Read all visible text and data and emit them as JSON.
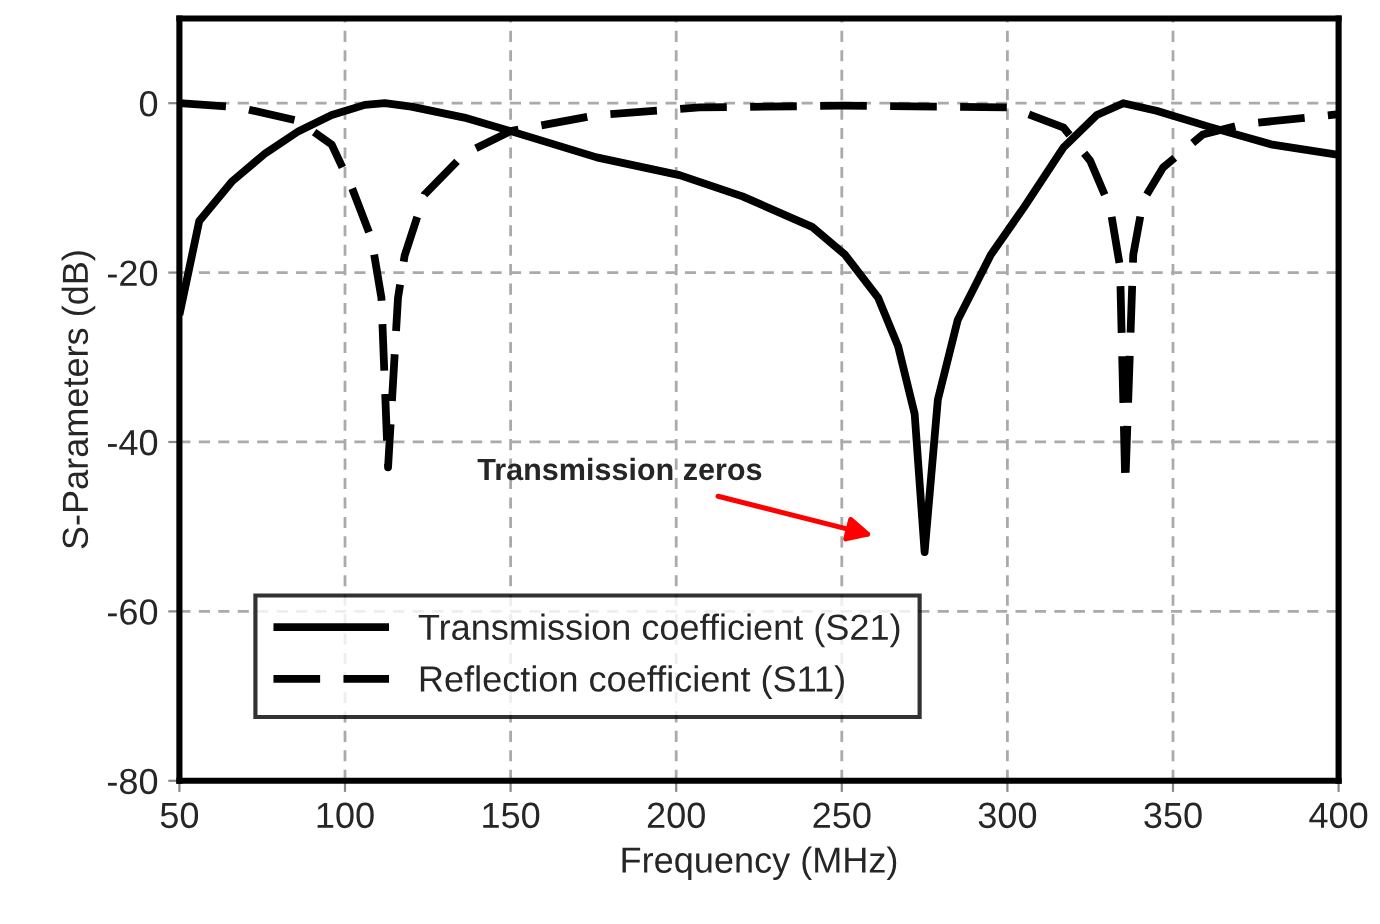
{
  "chart_data": {
    "type": "line",
    "xlabel": "Frequency (MHz)",
    "ylabel": "S-Parameters (dB)",
    "xlim": [
      50,
      400
    ],
    "xticks": [
      50,
      100,
      150,
      200,
      250,
      300,
      350,
      400
    ],
    "ylim": [
      -80,
      10
    ],
    "yticks": [
      -80,
      -60,
      -40,
      -20,
      0
    ],
    "grid": true,
    "legend": "bottom left",
    "marker": "none",
    "annotations": [
      "Transmission zeros"
    ],
    "series": [
      {
        "name": "Transmission coefficient (S21)",
        "color": "#000000",
        "line_style": "solid",
        "x": [
          50,
          56,
          66,
          76,
          86,
          96,
          106,
          112,
          120,
          136,
          150,
          176,
          201,
          220,
          241,
          251,
          261,
          267,
          272,
          275,
          279,
          285,
          295,
          305,
          317,
          327,
          335,
          345,
          361,
          380,
          400
        ],
        "values": [
          -25,
          -13.9,
          -9.2,
          -5.9,
          -3.3,
          -1.4,
          -0.2,
          0,
          -0.4,
          -1.7,
          -3.3,
          -6.4,
          -8.5,
          -11,
          -14.6,
          -17.9,
          -23,
          -28.7,
          -36.7,
          -53,
          -35,
          -25.6,
          -17.9,
          -12.3,
          -5.2,
          -1.4,
          0,
          -0.9,
          -2.8,
          -4.9,
          -6.1
        ]
      },
      {
        "name": "Reflection coefficient (S11)",
        "color": "#000000",
        "line_style": "dashed",
        "x": [
          50,
          68,
          86,
          96,
          102,
          108,
          111,
          113,
          116,
          118,
          124,
          136,
          150,
          176,
          207,
          250,
          301,
          317,
          325,
          331,
          334,
          335.6,
          338,
          341,
          347,
          359,
          371,
          400
        ],
        "values": [
          0,
          -0.5,
          -2.1,
          -4.9,
          -9.9,
          -16,
          -23,
          -43,
          -23,
          -18,
          -10.8,
          -6,
          -3.3,
          -1.4,
          -0.5,
          -0.3,
          -0.5,
          -2.9,
          -6.8,
          -12.3,
          -19.3,
          -45,
          -17.9,
          -11.5,
          -7.6,
          -3.7,
          -2.5,
          -1.3
        ]
      }
    ]
  }
}
